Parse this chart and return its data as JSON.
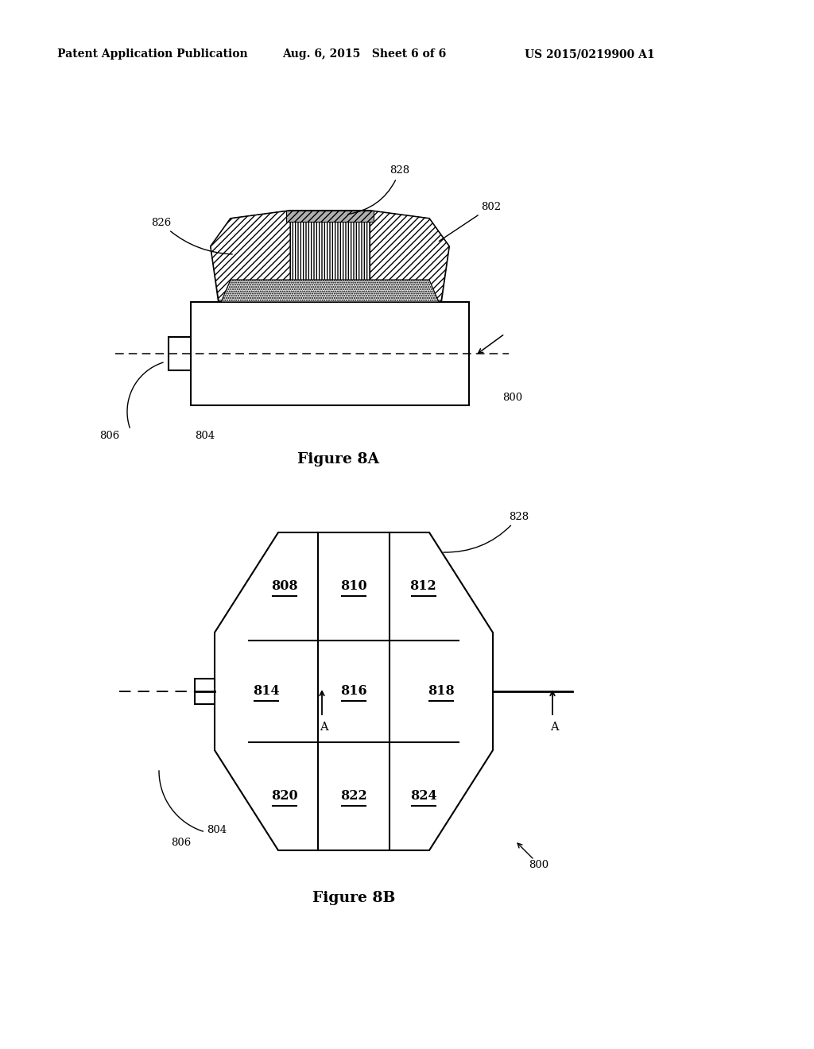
{
  "header_left": "Patent Application Publication",
  "header_mid": "Aug. 6, 2015   Sheet 6 of 6",
  "header_right": "US 2015/0219900 A1",
  "fig8a_title": "Figure 8A",
  "fig8b_title": "Figure 8B",
  "bg_color": "#ffffff",
  "line_color": "#000000"
}
